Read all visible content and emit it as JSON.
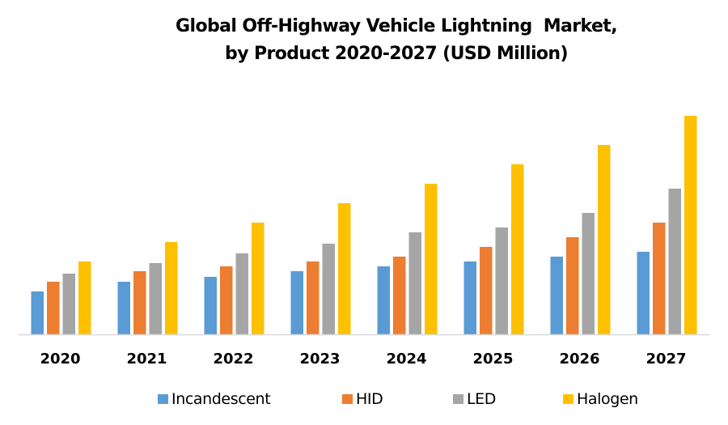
{
  "chart_data": {
    "type": "bar",
    "title": "Global Off-Highway Vehicle Lightning  Market,",
    "subtitle": "by Product 2020-2027 (USD Million)",
    "xlabel": "",
    "ylabel": "",
    "y_axis_visible": false,
    "grid": false,
    "legend_position": "bottom",
    "value_units": "relative (no y-axis scale shown)",
    "ylim": [
      0,
      280
    ],
    "categories": [
      "2020",
      "2021",
      "2022",
      "2023",
      "2024",
      "2025",
      "2026",
      "2027"
    ],
    "series": [
      {
        "name": "Incandescent",
        "color": "#5B9BD5",
        "values": [
          53,
          65,
          71,
          78,
          84,
          90,
          96,
          102
        ]
      },
      {
        "name": "HID",
        "color": "#ED7D31",
        "values": [
          65,
          78,
          84,
          90,
          96,
          108,
          120,
          138
        ]
      },
      {
        "name": "LED",
        "color": "#A5A5A5",
        "values": [
          75,
          88,
          100,
          112,
          126,
          132,
          150,
          180
        ]
      },
      {
        "name": "Halogen",
        "color": "#FFC000",
        "values": [
          90,
          114,
          138,
          162,
          186,
          210,
          234,
          270
        ]
      }
    ]
  },
  "colors": {
    "axis_line": "#D9D9D9",
    "text": "#000000",
    "background": "#FFFFFF"
  }
}
